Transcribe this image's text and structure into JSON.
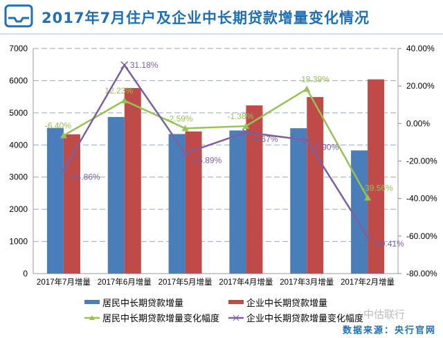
{
  "title": "2017年7月住户及企业中长期贷款增量变化情况",
  "source": "数据来源：央行官网",
  "watermark": "中估联行",
  "chart_data": {
    "type": "bar",
    "title": "2017年7月住户及企业中长期贷款增量变化情况",
    "categories": [
      "2017年7月增量",
      "2017年6月增量",
      "2017年5月增量",
      "2017年4月增量",
      "2017年3月增量",
      "2017年2月增量"
    ],
    "series": [
      {
        "name": "居民中长期贷款增量",
        "type": "bar",
        "axis": "left",
        "color": "#4a7ebb",
        "values": [
          4530,
          4870,
          4340,
          4450,
          4520,
          3830
        ]
      },
      {
        "name": "企业中长期贷款增量",
        "type": "bar",
        "axis": "left",
        "color": "#be4b48",
        "values": [
          4330,
          5770,
          4420,
          5230,
          5490,
          6040
        ]
      },
      {
        "name": "居民中长期贷款增量变化幅度",
        "type": "line",
        "marker": "triangle",
        "axis": "right",
        "color": "#98c154",
        "values": [
          -6.4,
          12.23,
          -2.59,
          -1.38,
          18.39,
          -39.56
        ],
        "labels": [
          "-6.40%",
          "12.23%",
          "-2.59%",
          "-1.38%",
          "18.39%",
          "-39.56%"
        ]
      },
      {
        "name": "企业中长期贷款增量变化幅度",
        "type": "line",
        "marker": "x",
        "axis": "right",
        "color": "#7d5fa0",
        "values": [
          -24.86,
          31.18,
          -15.89,
          -4.67,
          -8.9,
          -60.41
        ],
        "labels": [
          "-24.86%",
          "31.18%",
          "-15.89%",
          "-4.67%",
          "-8.90%",
          "-60.41%"
        ]
      }
    ],
    "ylim": [
      0,
      7000
    ],
    "yticks": [
      "0",
      "1000",
      "2000",
      "3000",
      "4000",
      "5000",
      "6000",
      "7000"
    ],
    "y2lim": [
      -80,
      40
    ],
    "y2ticks": [
      "-80.00%",
      "-60.00%",
      "-40.00%",
      "-20.00%",
      "0.00%",
      "20.00%",
      "40.00%"
    ],
    "grid": true,
    "legend": "bottom"
  }
}
